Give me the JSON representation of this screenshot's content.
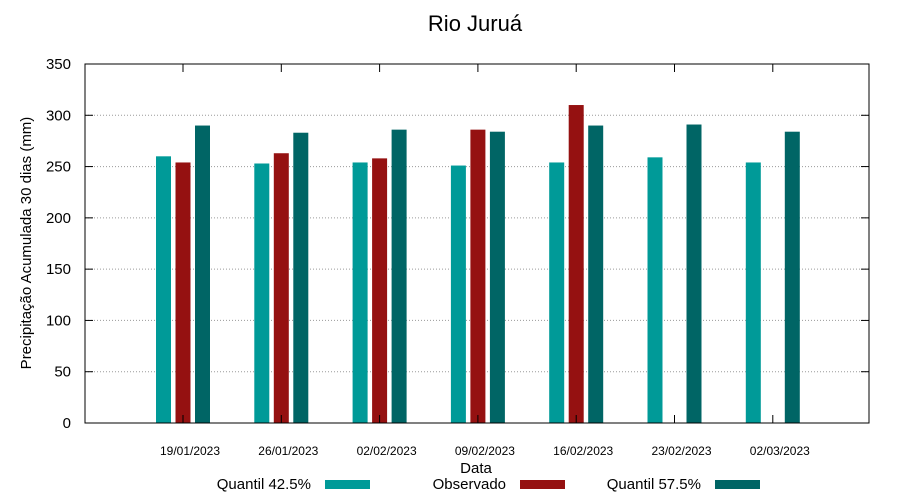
{
  "chart_data": {
    "type": "bar",
    "title": "Rio Juruá",
    "xlabel": "Data",
    "ylabel": "Precipitação Acumulada 30 dias (mm)",
    "ylim": [
      0,
      350
    ],
    "yticks": [
      0,
      50,
      100,
      150,
      200,
      250,
      300,
      350
    ],
    "grid": true,
    "legend_position": "bottom",
    "categories": [
      "19/01/2023",
      "26/01/2023",
      "02/02/2023",
      "09/02/2023",
      "16/02/2023",
      "23/02/2023",
      "02/03/2023"
    ],
    "series": [
      {
        "name": "Quantil 42.5%",
        "color": "#009a98",
        "values": [
          260,
          253,
          254,
          251,
          254,
          259,
          254
        ]
      },
      {
        "name": "Observado",
        "color": "#951111",
        "values": [
          254,
          263,
          258,
          286,
          310,
          null,
          null
        ]
      },
      {
        "name": "Quantil 57.5%",
        "color": "#006565",
        "values": [
          290,
          283,
          286,
          284,
          290,
          291,
          284
        ]
      }
    ]
  }
}
